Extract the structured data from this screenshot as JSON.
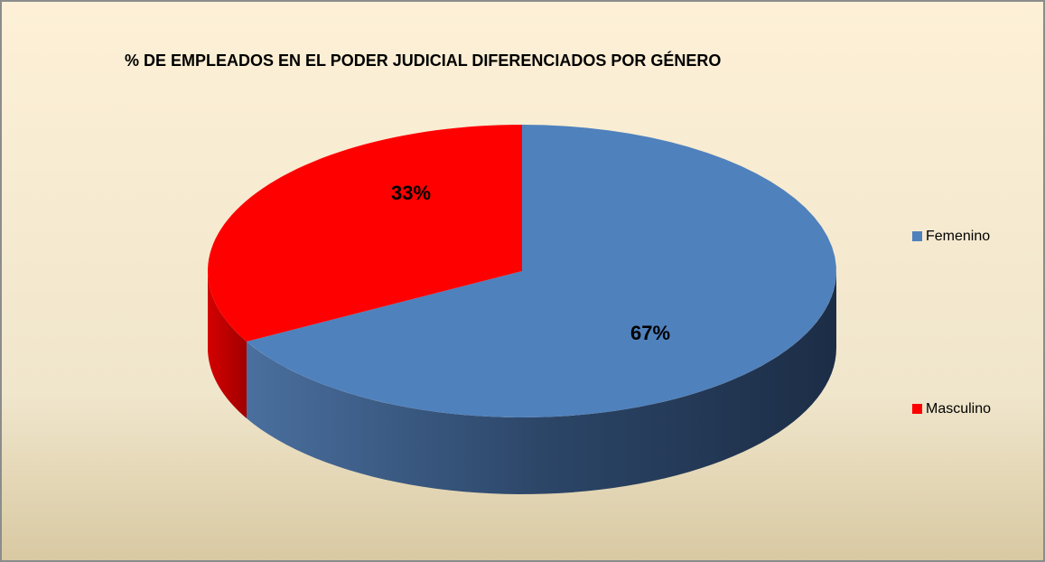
{
  "chart_data": {
    "type": "pie",
    "title": "% DE EMPLEADOS EN EL PODER JUDICIAL DIFERENCIADOS POR GÉNERO",
    "categories": [
      "Femenino",
      "Masculino"
    ],
    "values": [
      67,
      33
    ],
    "value_labels": [
      "67%",
      "33%"
    ],
    "colors": [
      "#4f81bd",
      "#ff0000"
    ],
    "legend": "right"
  }
}
